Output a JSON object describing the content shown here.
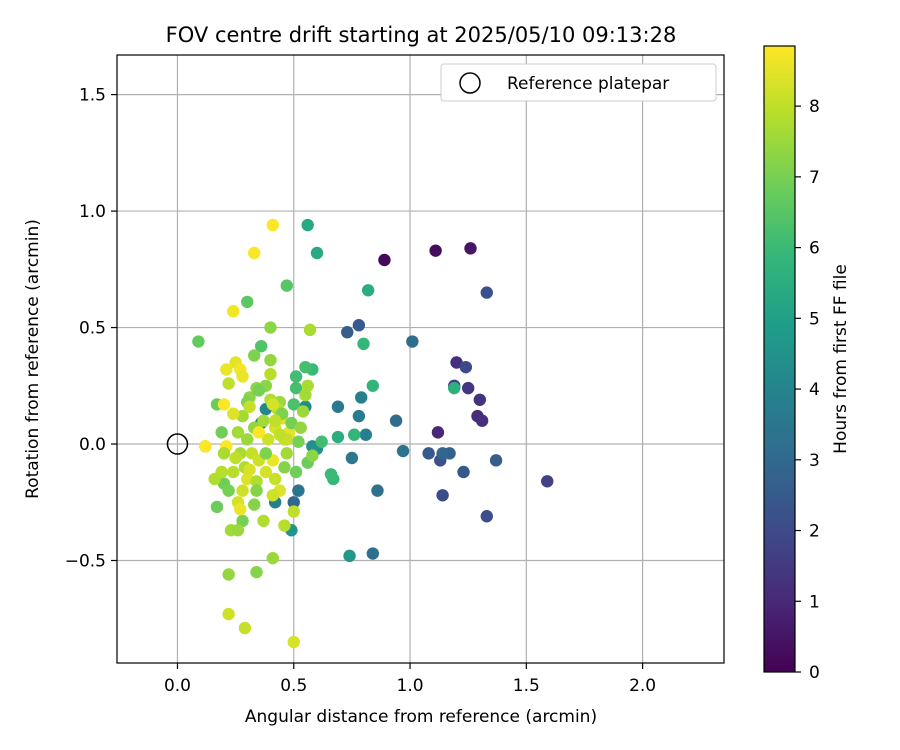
{
  "chart_data": {
    "type": "scatter",
    "title": "FOV centre drift starting at 2025/05/10 09:13:28",
    "xlabel": "Angular distance from reference (arcmin)",
    "ylabel": "Rotation from reference (arcmin)",
    "xlim": [
      -0.26,
      2.35
    ],
    "ylim": [
      -0.94,
      1.67
    ],
    "xticks": [
      0.0,
      0.5,
      1.0,
      1.5,
      2.0
    ],
    "xtick_labels": [
      "0.0",
      "0.5",
      "1.0",
      "1.5",
      "2.0"
    ],
    "yticks": [
      -0.5,
      0.0,
      0.5,
      1.0,
      1.5
    ],
    "ytick_labels": [
      "−0.5",
      "0.0",
      "0.5",
      "1.0",
      "1.5"
    ],
    "grid": true,
    "legend": {
      "position": "top-right",
      "entries": [
        "Reference platepar"
      ]
    },
    "reference_point": {
      "x": 0.0,
      "y": 0.0,
      "label": "Reference platepar"
    },
    "colorbar": {
      "label": "Hours from first FF file",
      "colormap": "viridis",
      "range": [
        0,
        8.85
      ],
      "ticks": [
        0,
        1,
        2,
        3,
        4,
        5,
        6,
        7,
        8
      ],
      "tick_labels": [
        "0",
        "1",
        "2",
        "3",
        "4",
        "5",
        "6",
        "7",
        "8"
      ]
    },
    "series": [
      {
        "points": [
          [
            0.89,
            0.79,
            0.2
          ],
          [
            1.11,
            0.83,
            0.3
          ],
          [
            1.26,
            0.84,
            0.5
          ],
          [
            1.12,
            0.05,
            1.0
          ],
          [
            1.2,
            0.35,
            1.2
          ],
          [
            1.25,
            0.24,
            1.4
          ],
          [
            1.29,
            0.12,
            1.1
          ],
          [
            1.31,
            0.1,
            1.2
          ],
          [
            1.3,
            0.19,
            1.3
          ],
          [
            1.19,
            0.25,
            1.5
          ],
          [
            1.24,
            0.33,
            1.9
          ],
          [
            1.33,
            0.65,
            2.2
          ],
          [
            1.59,
            -0.16,
            1.7
          ],
          [
            1.33,
            -0.31,
            2.1
          ],
          [
            1.14,
            -0.22,
            2.0
          ],
          [
            1.23,
            -0.12,
            2.4
          ],
          [
            1.37,
            -0.07,
            2.6
          ],
          [
            1.13,
            -0.07,
            2.2
          ],
          [
            1.08,
            -0.04,
            2.5
          ],
          [
            1.17,
            -0.04,
            2.7
          ],
          [
            1.14,
            -0.04,
            2.9
          ],
          [
            0.78,
            0.51,
            2.5
          ],
          [
            0.73,
            0.48,
            2.6
          ],
          [
            1.01,
            0.44,
            3.2
          ],
          [
            0.94,
            0.1,
            3.1
          ],
          [
            0.97,
            -0.03,
            3.4
          ],
          [
            0.86,
            -0.2,
            3.3
          ],
          [
            0.84,
            -0.47,
            3.2
          ],
          [
            0.75,
            -0.06,
            3.5
          ],
          [
            0.81,
            0.04,
            3.8
          ],
          [
            0.78,
            0.12,
            3.7
          ],
          [
            0.79,
            0.2,
            3.9
          ],
          [
            0.69,
            0.16,
            3.6
          ],
          [
            0.5,
            -0.25,
            3.0
          ],
          [
            0.52,
            -0.2,
            3.4
          ],
          [
            0.42,
            -0.25,
            3.8
          ],
          [
            0.55,
            0.16,
            4.2
          ],
          [
            0.58,
            -0.01,
            4.4
          ],
          [
            0.6,
            -0.02,
            4.5
          ],
          [
            0.36,
            0.09,
            4.0
          ],
          [
            0.38,
            0.15,
            4.1
          ],
          [
            0.74,
            -0.48,
            4.7
          ],
          [
            0.49,
            -0.37,
            4.6
          ],
          [
            0.56,
            0.94,
            5.3
          ],
          [
            0.6,
            0.82,
            5.3
          ],
          [
            0.82,
            0.66,
            5.5
          ],
          [
            0.84,
            0.25,
            5.8
          ],
          [
            0.8,
            0.43,
            5.9
          ],
          [
            1.19,
            0.24,
            5.6
          ],
          [
            0.69,
            0.03,
            5.5
          ],
          [
            0.76,
            0.04,
            5.8
          ],
          [
            0.67,
            -0.15,
            5.9
          ],
          [
            0.66,
            -0.13,
            6.0
          ],
          [
            0.62,
            0.01,
            6.1
          ],
          [
            0.58,
            0.32,
            6.0
          ],
          [
            0.55,
            0.33,
            6.2
          ],
          [
            0.51,
            0.29,
            6.1
          ],
          [
            0.51,
            0.24,
            6.2
          ],
          [
            0.5,
            0.17,
            6.3
          ],
          [
            0.36,
            0.42,
            6.4
          ],
          [
            0.47,
            0.68,
            6.5
          ],
          [
            0.3,
            0.61,
            6.6
          ],
          [
            0.09,
            0.44,
            6.7
          ],
          [
            0.17,
            0.17,
            6.8
          ],
          [
            0.19,
            0.05,
            6.9
          ],
          [
            0.12,
            -0.01,
            7.0
          ],
          [
            0.17,
            -0.27,
            6.8
          ],
          [
            0.2,
            -0.17,
            6.9
          ],
          [
            0.22,
            -0.2,
            7.0
          ],
          [
            0.28,
            -0.33,
            7.0
          ],
          [
            0.34,
            -0.55,
            7.2
          ],
          [
            0.22,
            -0.56,
            7.4
          ],
          [
            0.41,
            -0.49,
            7.5
          ],
          [
            0.23,
            -0.37,
            7.6
          ],
          [
            0.26,
            -0.37,
            7.5
          ],
          [
            0.33,
            -0.26,
            7.2
          ],
          [
            0.37,
            -0.33,
            7.8
          ],
          [
            0.46,
            -0.35,
            7.9
          ],
          [
            0.5,
            -0.29,
            8.0
          ],
          [
            0.57,
            0.49,
            7.7
          ],
          [
            0.4,
            0.5,
            7.3
          ],
          [
            0.4,
            0.36,
            7.4
          ],
          [
            0.33,
            0.38,
            7.1
          ],
          [
            0.56,
            0.25,
            7.7
          ],
          [
            0.55,
            0.21,
            7.6
          ],
          [
            0.54,
            0.14,
            7.5
          ],
          [
            0.44,
            0.18,
            7.5
          ],
          [
            0.38,
            0.25,
            7.3
          ],
          [
            0.34,
            0.24,
            7.3
          ],
          [
            0.31,
            0.2,
            7.3
          ],
          [
            0.33,
            0.07,
            7.4
          ],
          [
            0.3,
            0.02,
            7.5
          ],
          [
            0.26,
            0.05,
            7.6
          ],
          [
            0.27,
            -0.04,
            7.7
          ],
          [
            0.29,
            -0.1,
            7.8
          ],
          [
            0.24,
            -0.12,
            7.9
          ],
          [
            0.25,
            -0.06,
            8.0
          ],
          [
            0.32,
            -0.04,
            8.1
          ],
          [
            0.35,
            -0.07,
            8.2
          ],
          [
            0.38,
            -0.12,
            8.3
          ],
          [
            0.42,
            -0.15,
            8.1
          ],
          [
            0.44,
            -0.2,
            8.4
          ],
          [
            0.41,
            -0.22,
            8.2
          ],
          [
            0.39,
            0.02,
            8.2
          ],
          [
            0.42,
            0.07,
            8.3
          ],
          [
            0.45,
            0.11,
            8.4
          ],
          [
            0.48,
            0.05,
            8.5
          ],
          [
            0.46,
            0.02,
            8.2
          ],
          [
            0.43,
            0.15,
            7.9
          ],
          [
            0.4,
            0.19,
            7.8
          ],
          [
            0.37,
            0.1,
            7.6
          ],
          [
            0.28,
            0.12,
            7.6
          ],
          [
            0.22,
            0.26,
            8.0
          ],
          [
            0.25,
            0.35,
            8.5
          ],
          [
            0.21,
            0.32,
            8.6
          ],
          [
            0.27,
            0.32,
            8.7
          ],
          [
            0.28,
            0.29,
            8.6
          ],
          [
            0.24,
            0.57,
            8.7
          ],
          [
            0.33,
            0.82,
            8.8
          ],
          [
            0.41,
            0.94,
            8.85
          ],
          [
            0.2,
            0.17,
            8.8
          ],
          [
            0.12,
            -0.01,
            8.9
          ],
          [
            0.21,
            -0.01,
            8.8
          ],
          [
            0.24,
            0.13,
            8.4
          ],
          [
            0.26,
            -0.25,
            8.3
          ],
          [
            0.28,
            -0.2,
            8.2
          ],
          [
            0.27,
            -0.28,
            8.6
          ],
          [
            0.3,
            -0.15,
            8.4
          ],
          [
            0.22,
            -0.73,
            8.2
          ],
          [
            0.29,
            -0.79,
            8.1
          ],
          [
            0.5,
            -0.85,
            8.3
          ],
          [
            0.19,
            -0.12,
            7.9
          ],
          [
            0.16,
            -0.15,
            7.8
          ],
          [
            0.2,
            -0.04,
            7.7
          ],
          [
            0.3,
            0.18,
            7.1
          ],
          [
            0.45,
            0.13,
            7.1
          ],
          [
            0.49,
            0.09,
            7.0
          ],
          [
            0.52,
            0.01,
            7.0
          ],
          [
            0.46,
            -0.1,
            7.2
          ],
          [
            0.51,
            -0.12,
            6.9
          ],
          [
            0.56,
            -0.08,
            6.8
          ],
          [
            0.58,
            -0.05,
            7.3
          ],
          [
            0.47,
            -0.04,
            7.6
          ],
          [
            0.41,
            -0.07,
            8.6
          ],
          [
            0.35,
            0.05,
            8.8
          ],
          [
            0.41,
            0.17,
            8.3
          ],
          [
            0.47,
            0.02,
            8.1
          ],
          [
            0.31,
            -0.11,
            8.3
          ],
          [
            0.34,
            -0.16,
            7.8
          ],
          [
            0.53,
            0.07,
            7.4
          ],
          [
            0.35,
            0.23,
            7.0
          ],
          [
            0.4,
            0.3,
            7.9
          ],
          [
            0.42,
            0.1,
            8.0
          ],
          [
            0.44,
            0.04,
            8.0
          ],
          [
            0.38,
            -0.04,
            7.1
          ],
          [
            0.34,
            -0.2,
            7.2
          ],
          [
            0.31,
            0.16,
            8.1
          ]
        ]
      }
    ]
  }
}
